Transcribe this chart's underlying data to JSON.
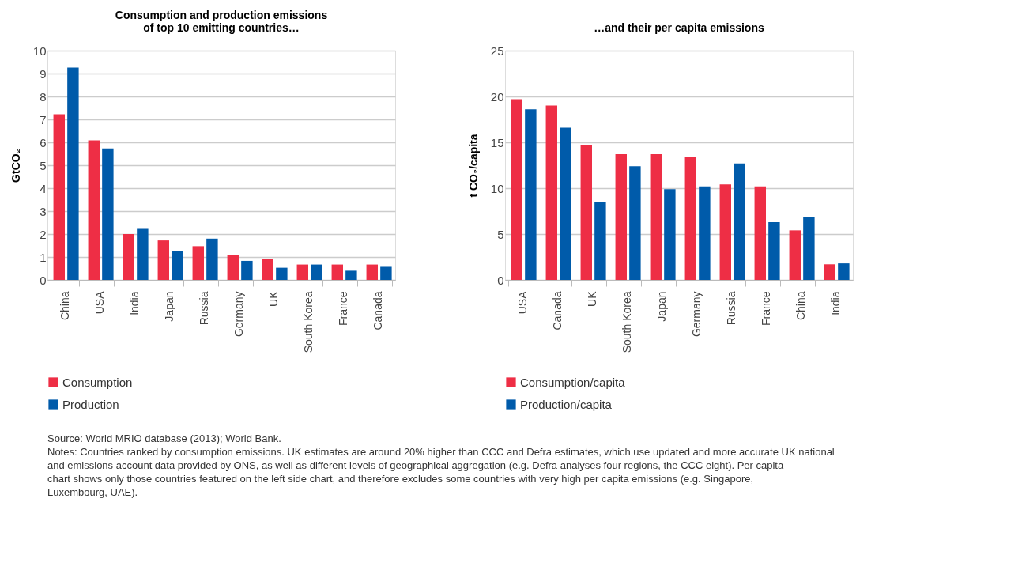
{
  "chart_data": [
    {
      "type": "bar",
      "title": "Consumption and production emissions\nof top 10 emitting countries…",
      "ylabel": "GtCO₂",
      "categories": [
        "China",
        "USA",
        "India",
        "Japan",
        "Russia",
        "Germany",
        "UK",
        "South Korea",
        "France",
        "Canada"
      ],
      "series": [
        {
          "name": "Consumption",
          "color": "#ee2e45",
          "values": [
            7.22,
            6.09,
            2.0,
            1.72,
            1.47,
            1.1,
            0.93,
            0.67,
            0.67,
            0.67
          ]
        },
        {
          "name": "Production",
          "color": "#005baa",
          "values": [
            9.26,
            5.73,
            2.22,
            1.26,
            1.8,
            0.83,
            0.53,
            0.67,
            0.4,
            0.57
          ]
        }
      ],
      "ylim": [
        0,
        10
      ],
      "yticks": [
        0,
        1,
        2,
        3,
        4,
        5,
        6,
        7,
        8,
        9,
        10
      ],
      "grid": "y",
      "legend": "bottom"
    },
    {
      "type": "bar",
      "title": "…and their per capita emissions",
      "ylabel": "t CO₂/capita",
      "categories": [
        "USA",
        "Canada",
        "UK",
        "South Korea",
        "Japan",
        "Germany",
        "Russia",
        "France",
        "China",
        "India"
      ],
      "series": [
        {
          "name": "Consumption/capita",
          "color": "#ee2e45",
          "values": [
            19.7,
            19.0,
            14.7,
            13.7,
            13.7,
            13.4,
            10.4,
            10.2,
            5.4,
            1.7
          ]
        },
        {
          "name": "Production/capita",
          "color": "#005baa",
          "values": [
            18.6,
            16.6,
            8.5,
            12.4,
            9.9,
            10.2,
            12.7,
            6.3,
            6.9,
            1.8
          ]
        }
      ],
      "ylim": [
        0,
        25
      ],
      "yticks": [
        0,
        5,
        10,
        15,
        20,
        25
      ],
      "grid": "y",
      "legend": "bottom",
      "annotations": [
        "Source: World MRIO database (2013); World Bank.",
        "Notes: Countries ranked by consumption emissions. UK estimates are around 20% higher than CCC and Defra estimates, which use updated and more accurate UK national and emissions account data provided by ONS, as well as different levels of geographical aggregation (e.g. Defra analyses four regions, the CCC eight). Per capita chart shows only those countries featured on the left side chart, and therefore excludes some countries with very high per capita emissions (e.g. Singapore, Luxembourg, UAE)."
      ]
    }
  ]
}
